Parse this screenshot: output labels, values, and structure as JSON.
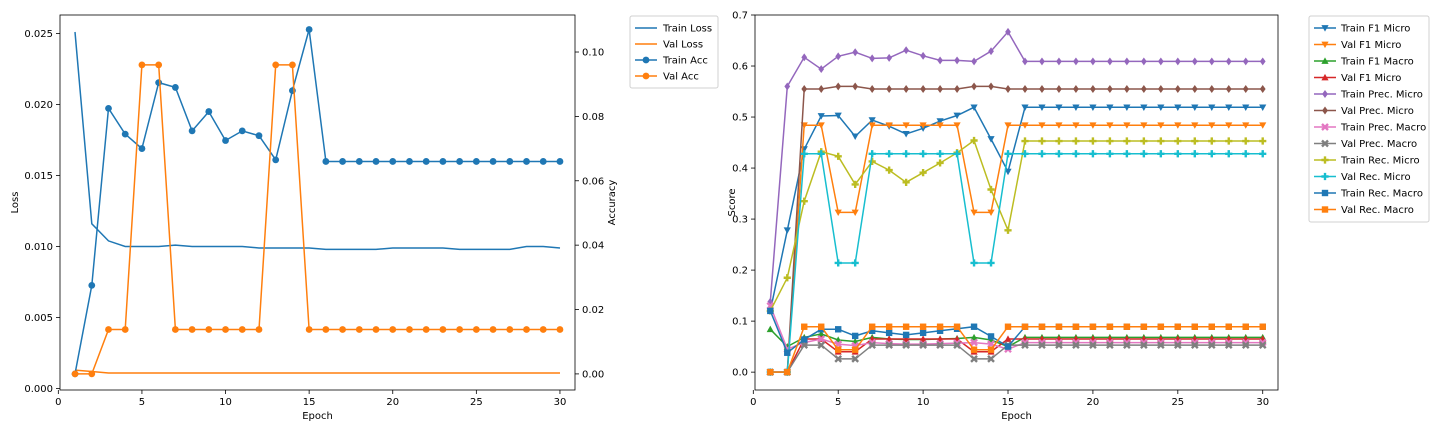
{
  "chart_data": [
    {
      "type": "line",
      "xlabel": "Epoch",
      "ylabel": "Loss",
      "ylabel_right": "Accuracy",
      "xlim": [
        0.1,
        30.9
      ],
      "ylim": [
        -0.0001,
        0.0263
      ],
      "ylim_right": [
        -0.005,
        0.1115
      ],
      "x_ticks": [
        0,
        5,
        10,
        15,
        20,
        25,
        30
      ],
      "y_ticks": [
        0.0,
        0.005,
        0.01,
        0.015,
        0.02,
        0.025
      ],
      "y_tick_labels": [
        "0.000",
        "0.005",
        "0.010",
        "0.015",
        "0.020",
        "0.025"
      ],
      "y_ticks_right": [
        0.0,
        0.02,
        0.04,
        0.06,
        0.08,
        0.1
      ],
      "y_tick_labels_right": [
        "0.00",
        "0.02",
        "0.04",
        "0.06",
        "0.08",
        "0.10"
      ],
      "legend_position": "outside-top-right",
      "grid": false,
      "x": [
        1,
        2,
        3,
        4,
        5,
        6,
        7,
        8,
        9,
        10,
        11,
        12,
        13,
        14,
        15,
        16,
        17,
        18,
        19,
        20,
        21,
        22,
        23,
        24,
        25,
        26,
        27,
        28,
        29,
        30
      ],
      "series": [
        {
          "name": "Train Loss",
          "axis": "left",
          "color": "#1f77b4",
          "marker": "none",
          "values": [
            0.0251,
            0.0116,
            0.0104,
            0.01,
            0.01,
            0.01,
            0.0101,
            0.01,
            0.01,
            0.01,
            0.01,
            0.0099,
            0.0099,
            0.0099,
            0.0099,
            0.0098,
            0.0098,
            0.0098,
            0.0098,
            0.0099,
            0.0099,
            0.0099,
            0.0099,
            0.0098,
            0.0098,
            0.0098,
            0.0098,
            0.01,
            0.01,
            0.0099
          ]
        },
        {
          "name": "Val Loss",
          "axis": "left",
          "color": "#ff7f0e",
          "marker": "none",
          "values": [
            0.0013,
            0.0012,
            0.0011,
            0.0011,
            0.0011,
            0.0011,
            0.0011,
            0.0011,
            0.0011,
            0.0011,
            0.0011,
            0.0011,
            0.0011,
            0.0011,
            0.0011,
            0.0011,
            0.0011,
            0.0011,
            0.0011,
            0.0011,
            0.0011,
            0.0011,
            0.0011,
            0.0011,
            0.0011,
            0.0011,
            0.0011,
            0.0011,
            0.0011,
            0.0011
          ]
        },
        {
          "name": "Train Acc",
          "axis": "right",
          "color": "#1f77b4",
          "marker": "circle",
          "values": [
            0.0,
            0.0275,
            0.0825,
            0.0745,
            0.07,
            0.0905,
            0.089,
            0.0755,
            0.0815,
            0.0725,
            0.0755,
            0.074,
            0.0665,
            0.088,
            0.107,
            0.066,
            0.066,
            0.066,
            0.066,
            0.066,
            0.066,
            0.066,
            0.066,
            0.066,
            0.066,
            0.066,
            0.066,
            0.066,
            0.066,
            0.066
          ]
        },
        {
          "name": "Val Acc",
          "axis": "right",
          "color": "#ff7f0e",
          "marker": "circle",
          "values": [
            0.0,
            0.0,
            0.0138,
            0.0138,
            0.096,
            0.096,
            0.0138,
            0.0138,
            0.0138,
            0.0138,
            0.0138,
            0.0138,
            0.096,
            0.096,
            0.0138,
            0.0138,
            0.0138,
            0.0138,
            0.0138,
            0.0138,
            0.0138,
            0.0138,
            0.0138,
            0.0138,
            0.0138,
            0.0138,
            0.0138,
            0.0138,
            0.0138,
            0.0138
          ]
        }
      ]
    },
    {
      "type": "line",
      "xlabel": "Epoch",
      "ylabel": "Score",
      "xlim": [
        0.1,
        30.9
      ],
      "ylim": [
        -0.035,
        0.7
      ],
      "x_ticks": [
        0,
        5,
        10,
        15,
        20,
        25,
        30
      ],
      "y_ticks": [
        0.0,
        0.1,
        0.2,
        0.3,
        0.4,
        0.5,
        0.6,
        0.7
      ],
      "y_tick_labels": [
        "0.0",
        "0.1",
        "0.2",
        "0.3",
        "0.4",
        "0.5",
        "0.6",
        "0.7"
      ],
      "legend_position": "outside-top-right",
      "grid": false,
      "x": [
        1,
        2,
        3,
        4,
        5,
        6,
        7,
        8,
        9,
        10,
        11,
        12,
        13,
        14,
        15,
        16,
        17,
        18,
        19,
        20,
        21,
        22,
        23,
        24,
        25,
        26,
        27,
        28,
        29,
        30
      ],
      "series": [
        {
          "name": "Train F1 Micro",
          "color": "#1f77b4",
          "marker": "triangle-down",
          "values": [
            0.12,
            0.278,
            0.437,
            0.502,
            0.503,
            0.462,
            0.494,
            0.482,
            0.467,
            0.478,
            0.492,
            0.503,
            0.519,
            0.457,
            0.393,
            0.519,
            0.519,
            0.519,
            0.519,
            0.519,
            0.519,
            0.519,
            0.519,
            0.519,
            0.519,
            0.519,
            0.519,
            0.519,
            0.519,
            0.519
          ]
        },
        {
          "name": "Val F1 Micro",
          "color": "#ff7f0e",
          "marker": "triangle-down",
          "values": [
            0.0,
            0.0,
            0.484,
            0.484,
            0.313,
            0.313,
            0.484,
            0.484,
            0.484,
            0.484,
            0.484,
            0.484,
            0.313,
            0.313,
            0.484,
            0.484,
            0.484,
            0.484,
            0.484,
            0.484,
            0.484,
            0.484,
            0.484,
            0.484,
            0.484,
            0.484,
            0.484,
            0.484,
            0.484,
            0.484
          ]
        },
        {
          "name": "Train F1 Macro",
          "color": "#2ca02c",
          "marker": "triangle-up",
          "values": [
            0.084,
            0.05,
            0.068,
            0.075,
            0.063,
            0.06,
            0.068,
            0.065,
            0.064,
            0.064,
            0.065,
            0.066,
            0.068,
            0.063,
            0.05,
            0.068,
            0.068,
            0.068,
            0.068,
            0.068,
            0.068,
            0.068,
            0.068,
            0.068,
            0.068,
            0.068,
            0.068,
            0.068,
            0.068,
            0.068
          ]
        },
        {
          "name": "Val F1 Micro",
          "color": "#d62728",
          "marker": "triangle-up",
          "values": [
            0.0,
            0.0,
            0.065,
            0.065,
            0.04,
            0.04,
            0.065,
            0.065,
            0.065,
            0.065,
            0.065,
            0.065,
            0.04,
            0.04,
            0.065,
            0.065,
            0.065,
            0.065,
            0.065,
            0.065,
            0.065,
            0.065,
            0.065,
            0.065,
            0.065,
            0.065,
            0.065,
            0.065,
            0.065,
            0.065
          ]
        },
        {
          "name": "Train Prec. Micro",
          "color": "#9467bd",
          "marker": "diamond",
          "values": [
            0.138,
            0.56,
            0.617,
            0.594,
            0.619,
            0.627,
            0.615,
            0.616,
            0.631,
            0.62,
            0.611,
            0.611,
            0.609,
            0.629,
            0.667,
            0.609,
            0.609,
            0.609,
            0.609,
            0.609,
            0.609,
            0.609,
            0.609,
            0.609,
            0.609,
            0.609,
            0.609,
            0.609,
            0.609,
            0.609
          ]
        },
        {
          "name": "Val Prec. Micro",
          "color": "#8c564b",
          "marker": "diamond",
          "values": [
            0.0,
            0.0,
            0.555,
            0.555,
            0.56,
            0.56,
            0.555,
            0.555,
            0.555,
            0.555,
            0.555,
            0.555,
            0.56,
            0.56,
            0.555,
            0.555,
            0.555,
            0.555,
            0.555,
            0.555,
            0.555,
            0.555,
            0.555,
            0.555,
            0.555,
            0.555,
            0.555,
            0.555,
            0.555,
            0.555
          ]
        },
        {
          "name": "Train Prec. Macro",
          "color": "#e377c2",
          "marker": "x",
          "values": [
            0.13,
            0.045,
            0.058,
            0.065,
            0.055,
            0.052,
            0.058,
            0.056,
            0.055,
            0.055,
            0.056,
            0.057,
            0.058,
            0.055,
            0.045,
            0.058,
            0.058,
            0.058,
            0.058,
            0.058,
            0.058,
            0.058,
            0.058,
            0.058,
            0.058,
            0.058,
            0.058,
            0.058,
            0.058,
            0.058
          ]
        },
        {
          "name": "Val Prec. Macro",
          "color": "#7f7f7f",
          "marker": "x",
          "values": [
            0.0,
            0.0,
            0.053,
            0.053,
            0.026,
            0.026,
            0.053,
            0.053,
            0.053,
            0.053,
            0.053,
            0.053,
            0.026,
            0.026,
            0.053,
            0.053,
            0.053,
            0.053,
            0.053,
            0.053,
            0.053,
            0.053,
            0.053,
            0.053,
            0.053,
            0.053,
            0.053,
            0.053,
            0.053,
            0.053
          ]
        },
        {
          "name": "Train Rec. Micro",
          "color": "#bcbd22",
          "marker": "plus",
          "values": [
            0.12,
            0.185,
            0.335,
            0.432,
            0.423,
            0.368,
            0.413,
            0.396,
            0.372,
            0.391,
            0.41,
            0.43,
            0.454,
            0.358,
            0.278,
            0.453,
            0.453,
            0.453,
            0.453,
            0.453,
            0.453,
            0.453,
            0.453,
            0.453,
            0.453,
            0.453,
            0.453,
            0.453,
            0.453,
            0.453
          ]
        },
        {
          "name": "Val Rec. Micro",
          "color": "#17becf",
          "marker": "plus",
          "values": [
            0.0,
            0.0,
            0.428,
            0.428,
            0.214,
            0.214,
            0.428,
            0.428,
            0.428,
            0.428,
            0.428,
            0.428,
            0.214,
            0.214,
            0.428,
            0.428,
            0.428,
            0.428,
            0.428,
            0.428,
            0.428,
            0.428,
            0.428,
            0.428,
            0.428,
            0.428,
            0.428,
            0.428,
            0.428,
            0.428
          ]
        },
        {
          "name": "Train Rec. Macro",
          "color": "#1f77b4",
          "marker": "square",
          "values": [
            0.12,
            0.038,
            0.064,
            0.084,
            0.084,
            0.071,
            0.081,
            0.077,
            0.073,
            0.077,
            0.081,
            0.085,
            0.089,
            0.07,
            0.05,
            0.089,
            0.089,
            0.089,
            0.089,
            0.089,
            0.089,
            0.089,
            0.089,
            0.089,
            0.089,
            0.089,
            0.089,
            0.089,
            0.089,
            0.089
          ]
        },
        {
          "name": "Val Rec. Macro",
          "color": "#ff7f0e",
          "marker": "square",
          "values": [
            0.0,
            0.0,
            0.089,
            0.089,
            0.044,
            0.044,
            0.089,
            0.089,
            0.089,
            0.089,
            0.089,
            0.089,
            0.044,
            0.044,
            0.089,
            0.089,
            0.089,
            0.089,
            0.089,
            0.089,
            0.089,
            0.089,
            0.089,
            0.089,
            0.089,
            0.089,
            0.089,
            0.089,
            0.089,
            0.089
          ]
        }
      ]
    }
  ]
}
